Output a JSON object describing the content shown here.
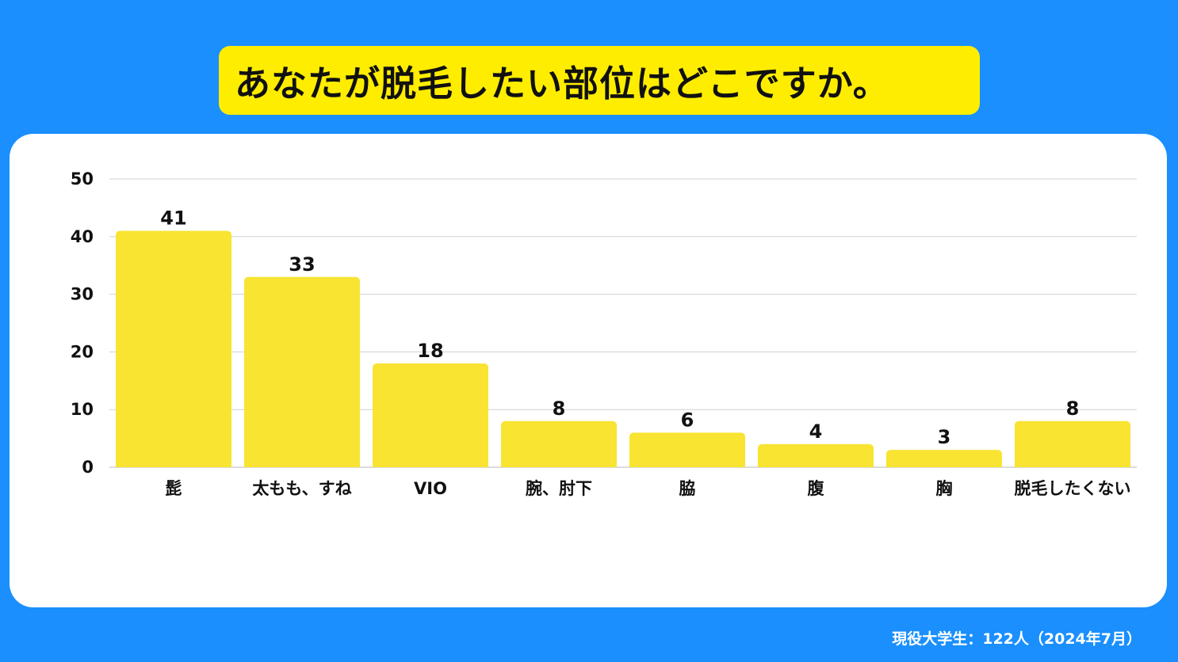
{
  "title": "あなたが脱毛したい部位はどこですか。",
  "footnote": "現役大学生：122人（2024年7月）",
  "colors": {
    "background": "#1a8ffd",
    "title_box": "#ffed00",
    "bar": "#f8e431",
    "grid": "#d0d0d0",
    "text": "#111111"
  },
  "chart_data": {
    "type": "bar",
    "title": "あなたが脱毛したい部位はどこですか。",
    "categories": [
      "髭",
      "太もも、すね",
      "VIO",
      "腕、肘下",
      "脇",
      "腹",
      "胸",
      "脱毛したくない"
    ],
    "values": [
      41,
      33,
      18,
      8,
      6,
      4,
      3,
      8
    ],
    "value_labels": [
      "41",
      "33",
      "18",
      "8",
      "6",
      "4",
      "3",
      "8"
    ],
    "yticks": [
      0,
      10,
      20,
      30,
      40,
      50
    ],
    "ytick_labels": [
      "0",
      "10",
      "20",
      "30",
      "40",
      "50"
    ],
    "ylim": [
      0,
      50
    ],
    "xlabel": "",
    "ylabel": "",
    "grid": true,
    "legend": "none"
  }
}
